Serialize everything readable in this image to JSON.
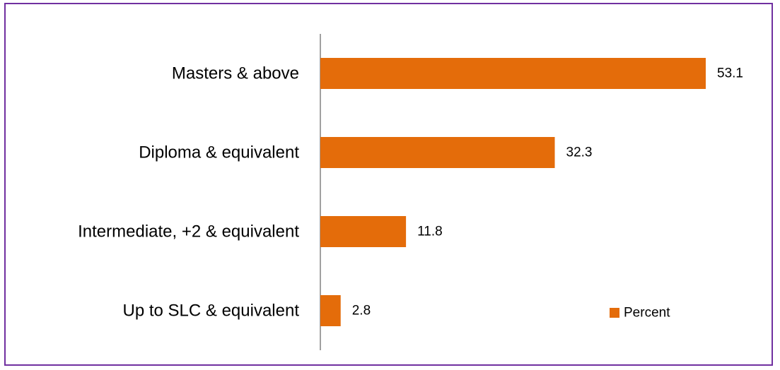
{
  "chart_data": {
    "type": "bar",
    "orientation": "horizontal",
    "categories": [
      "Masters & above",
      "Diploma & equivalent",
      "Intermediate, +2 & equivalent",
      "Up to SLC & equivalent"
    ],
    "series": [
      {
        "name": "Percent",
        "values": [
          53.1,
          32.3,
          11.8,
          2.8
        ],
        "color": "#e46c0a"
      }
    ],
    "value_labels": [
      "53.1",
      "32.3",
      "11.8",
      "2.8"
    ],
    "title": "",
    "xlabel": "",
    "ylabel": "",
    "xlim": [
      0,
      60
    ],
    "grid": false,
    "legend": {
      "position": "bottom-right",
      "entries": [
        "Percent"
      ]
    },
    "border_color": "#7030a0"
  }
}
